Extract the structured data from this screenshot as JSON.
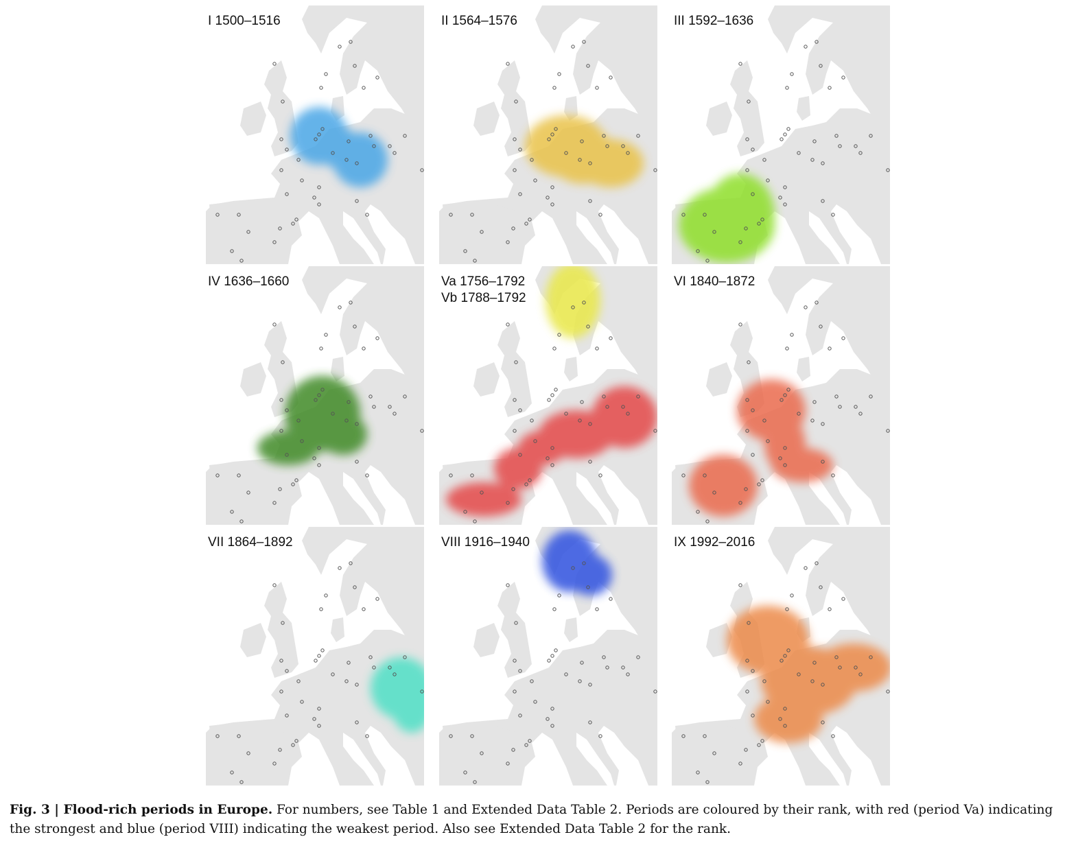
{
  "panels": [
    {
      "id": "I",
      "labels": [
        "I 1500–1516"
      ],
      "color": "#4aa6e6"
    },
    {
      "id": "II",
      "labels": [
        "II 1564–1576"
      ],
      "color": "#e9c24a"
    },
    {
      "id": "III",
      "labels": [
        "III 1592–1636"
      ],
      "color": "#8fdf2c"
    },
    {
      "id": "IV",
      "labels": [
        "IV 1636–1660"
      ],
      "color": "#3f8a26"
    },
    {
      "id": "V",
      "labels": [
        "Va 1756–1792",
        "Vb 1788–1792"
      ],
      "color": "#e44a4a",
      "color_b": "#e9e84e"
    },
    {
      "id": "VI",
      "labels": [
        "VI 1840–1872"
      ],
      "color": "#ea6a4e"
    },
    {
      "id": "VII",
      "labels": [
        "VII 1864–1892"
      ],
      "color": "#4fe0c6"
    },
    {
      "id": "VIII",
      "labels": [
        "VIII 1916–1940"
      ],
      "color": "#3657e0"
    },
    {
      "id": "IX",
      "labels": [
        "IX 1992–2016"
      ],
      "color": "#ec8a48"
    }
  ],
  "caption": {
    "bold": "Fig. 3 | Flood-rich periods in Europe.",
    "text": " For numbers, see Table 1 and Extended Data Table 2. Periods are coloured by their rank, with red (period Va) indicating the strongest and blue (period VIII) indicating the weakest period. Also see Extended Data Table 2 for the rank."
  },
  "colors": {
    "land": "#e4e4e4",
    "sea": "#ffffff",
    "station": "#555555"
  }
}
